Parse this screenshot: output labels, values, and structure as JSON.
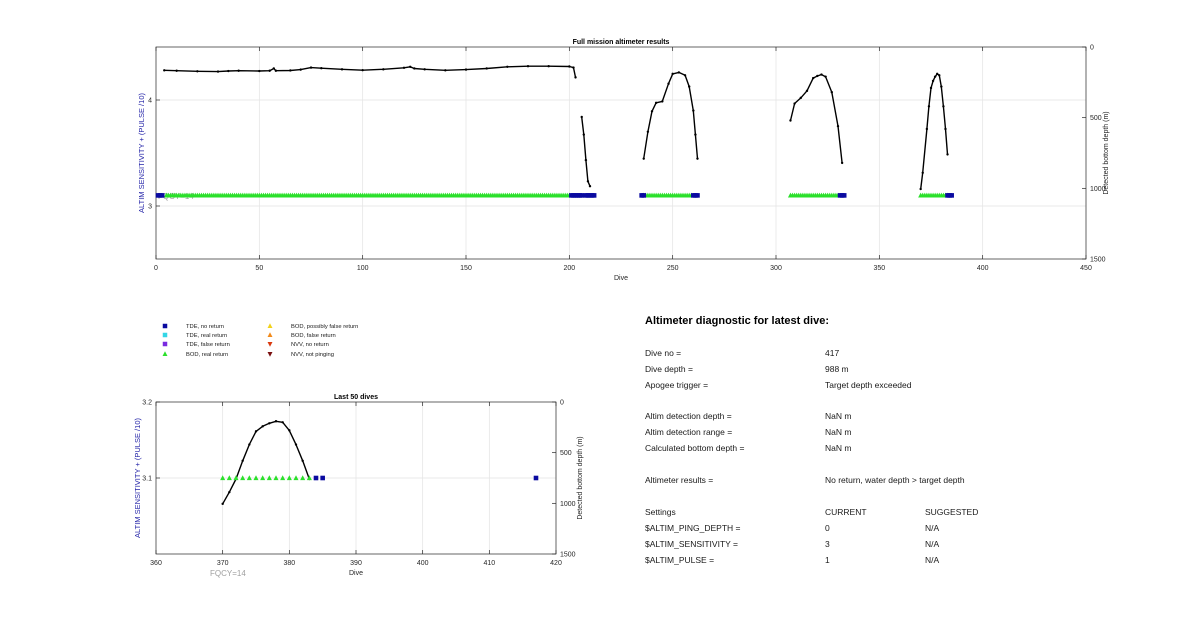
{
  "chart_data": [
    {
      "type": "line",
      "title": "Full mission altimeter results",
      "xlabel": "Dive",
      "ylabel": "ALTIM SENSITIVITY + (PULSE /10)",
      "y2label": "Detected bottom depth (m)",
      "xlim": [
        0,
        450
      ],
      "ylim": [
        2.5,
        4.5
      ],
      "y2lim": [
        0,
        1500
      ],
      "y2_reversed": true,
      "x_ticks": [
        0,
        50,
        100,
        150,
        200,
        250,
        300,
        350,
        400,
        450
      ],
      "y_ticks": [
        3,
        4
      ],
      "y2_ticks": [
        0,
        500,
        1000,
        1500
      ],
      "grid": true,
      "annotation": "FQCY=14",
      "series": [
        {
          "type": "line",
          "axis": "right",
          "color": "#000000",
          "segments": [
            [
              [
                4,
                165
              ],
              [
                10,
                168
              ],
              [
                20,
                172
              ],
              [
                30,
                174
              ],
              [
                35,
                170
              ],
              [
                40,
                168
              ],
              [
                50,
                170
              ],
              [
                55,
                168
              ],
              [
                57,
                152
              ],
              [
                58,
                168
              ],
              [
                65,
                166
              ],
              [
                70,
                160
              ],
              [
                75,
                146
              ],
              [
                80,
                150
              ],
              [
                90,
                158
              ],
              [
                100,
                164
              ],
              [
                110,
                158
              ],
              [
                120,
                147
              ],
              [
                123,
                140
              ],
              [
                125,
                152
              ],
              [
                130,
                158
              ],
              [
                140,
                165
              ],
              [
                150,
                160
              ],
              [
                160,
                152
              ],
              [
                170,
                140
              ],
              [
                180,
                136
              ],
              [
                190,
                136
              ],
              [
                200,
                138
              ],
              [
                202,
                146
              ],
              [
                203,
                215
              ]
            ],
            [
              [
                206,
                495
              ],
              [
                207,
                620
              ],
              [
                208,
                800
              ],
              [
                209,
                950
              ],
              [
                210,
                985
              ]
            ],
            [
              [
                236,
                790
              ],
              [
                238,
                600
              ],
              [
                240,
                455
              ],
              [
                242,
                395
              ],
              [
                245,
                385
              ],
              [
                248,
                260
              ],
              [
                250,
                190
              ],
              [
                253,
                180
              ],
              [
                256,
                200
              ],
              [
                258,
                280
              ],
              [
                260,
                450
              ],
              [
                261,
                620
              ],
              [
                262,
                790
              ]
            ],
            [
              [
                307,
                520
              ],
              [
                309,
                400
              ],
              [
                312,
                360
              ],
              [
                315,
                310
              ],
              [
                318,
                220
              ],
              [
                320,
                205
              ],
              [
                322,
                195
              ],
              [
                324,
                210
              ],
              [
                327,
                320
              ],
              [
                330,
                560
              ],
              [
                332,
                820
              ]
            ],
            [
              [
                370,
                1005
              ],
              [
                371,
                890
              ],
              [
                373,
                580
              ],
              [
                374,
                420
              ],
              [
                375,
                290
              ],
              [
                376,
                240
              ],
              [
                377,
                210
              ],
              [
                378,
                190
              ],
              [
                379,
                200
              ],
              [
                380,
                280
              ],
              [
                381,
                420
              ],
              [
                382,
                580
              ],
              [
                383,
                760
              ]
            ]
          ]
        },
        {
          "type": "scatter",
          "name": "BOD, real return",
          "axis": "left",
          "marker": "triangle",
          "color": "#2be02b",
          "points_ranges": [
            [
              5,
              200
            ],
            [
              236,
              259
            ],
            [
              307,
              330
            ],
            [
              370,
              383
            ]
          ],
          "y": 3.1
        },
        {
          "type": "scatter",
          "name": "TDE, no return",
          "axis": "left",
          "marker": "square",
          "color": "#0a0aa0",
          "x": [
            1,
            2,
            3,
            201,
            202,
            203,
            204,
            205,
            206,
            208,
            209,
            210,
            211,
            212,
            235,
            236,
            260,
            261,
            262,
            331,
            332,
            333,
            383,
            384,
            385
          ],
          "y": 3.1
        }
      ]
    },
    {
      "type": "line",
      "title": "Last 50 dives",
      "xlabel": "Dive",
      "ylabel": "ALTIM SENSITIVITY + (PULSE /10)",
      "y2label": "Detected bottom depth (m)",
      "xlim": [
        360,
        420
      ],
      "ylim": [
        3.0,
        3.2
      ],
      "y2lim": [
        0,
        1500
      ],
      "y2_reversed": true,
      "x_ticks": [
        360,
        370,
        380,
        390,
        400,
        410,
        420
      ],
      "y_ticks": [
        3.1,
        3.2
      ],
      "y2_ticks": [
        0,
        500,
        1000,
        1500
      ],
      "grid": true,
      "annotation": "FQCY=14",
      "series": [
        {
          "type": "line",
          "axis": "right",
          "color": "#000000",
          "points": [
            [
              370,
              1005
            ],
            [
              371,
              890
            ],
            [
              372,
              760
            ],
            [
              373,
              580
            ],
            [
              374,
              420
            ],
            [
              375,
              290
            ],
            [
              376,
              240
            ],
            [
              377,
              210
            ],
            [
              378,
              190
            ],
            [
              379,
              200
            ],
            [
              380,
              280
            ],
            [
              381,
              420
            ],
            [
              382,
              580
            ],
            [
              383,
              760
            ]
          ]
        },
        {
          "type": "scatter",
          "name": "BOD, real return",
          "axis": "left",
          "marker": "triangle",
          "color": "#2be02b",
          "x": [
            370,
            371,
            372,
            373,
            374,
            375,
            376,
            377,
            378,
            379,
            380,
            381,
            382,
            383
          ],
          "y": 3.1
        },
        {
          "type": "scatter",
          "name": "TDE, no return",
          "axis": "left",
          "marker": "square",
          "color": "#0a0aa0",
          "x": [
            384,
            385,
            417
          ],
          "y": 3.1
        }
      ]
    }
  ],
  "legend": [
    {
      "label": "TDE, no return",
      "marker": "square",
      "color": "#0a0aa0"
    },
    {
      "label": "TDE, real return",
      "marker": "square",
      "color": "#33d6e6"
    },
    {
      "label": "TDE, false return",
      "marker": "square",
      "color": "#7a2be0"
    },
    {
      "label": "BOD, real return",
      "marker": "triangle",
      "color": "#2be02b"
    },
    {
      "label": "BOD, possibly false return",
      "marker": "triangle",
      "color": "#f2d21a"
    },
    {
      "label": "BOD, false return",
      "marker": "triangle",
      "color": "#f28a1a"
    },
    {
      "label": "NVV, no return",
      "marker": "triangle-down",
      "color": "#d93a10"
    },
    {
      "label": "NVV, not pinging",
      "marker": "triangle-down",
      "color": "#7a1010"
    }
  ],
  "diagnostic": {
    "title": "Altimeter diagnostic for latest dive:",
    "rows": [
      {
        "label": "Dive no =",
        "value": "417"
      },
      {
        "label": "Dive depth =",
        "value": "988 m"
      },
      {
        "label": "Apogee trigger =",
        "value": "Target depth exceeded"
      },
      {
        "label": "Altim detection depth =",
        "value": "NaN m"
      },
      {
        "label": "Altim detection range =",
        "value": "NaN m"
      },
      {
        "label": "Calculated bottom depth =",
        "value": "NaN m"
      },
      {
        "label": "Altimeter results =",
        "value": "No return, water depth > target depth"
      }
    ],
    "settings": {
      "header": {
        "label": "Settings",
        "current": "CURRENT",
        "suggested": "SUGGESTED"
      },
      "rows": [
        {
          "label": "$ALTIM_PING_DEPTH =",
          "current": "0",
          "suggested": "N/A"
        },
        {
          "label": "$ALTIM_SENSITIVITY =",
          "current": "3",
          "suggested": "N/A"
        },
        {
          "label": "$ALTIM_PULSE =",
          "current": "1",
          "suggested": "N/A"
        }
      ]
    }
  }
}
